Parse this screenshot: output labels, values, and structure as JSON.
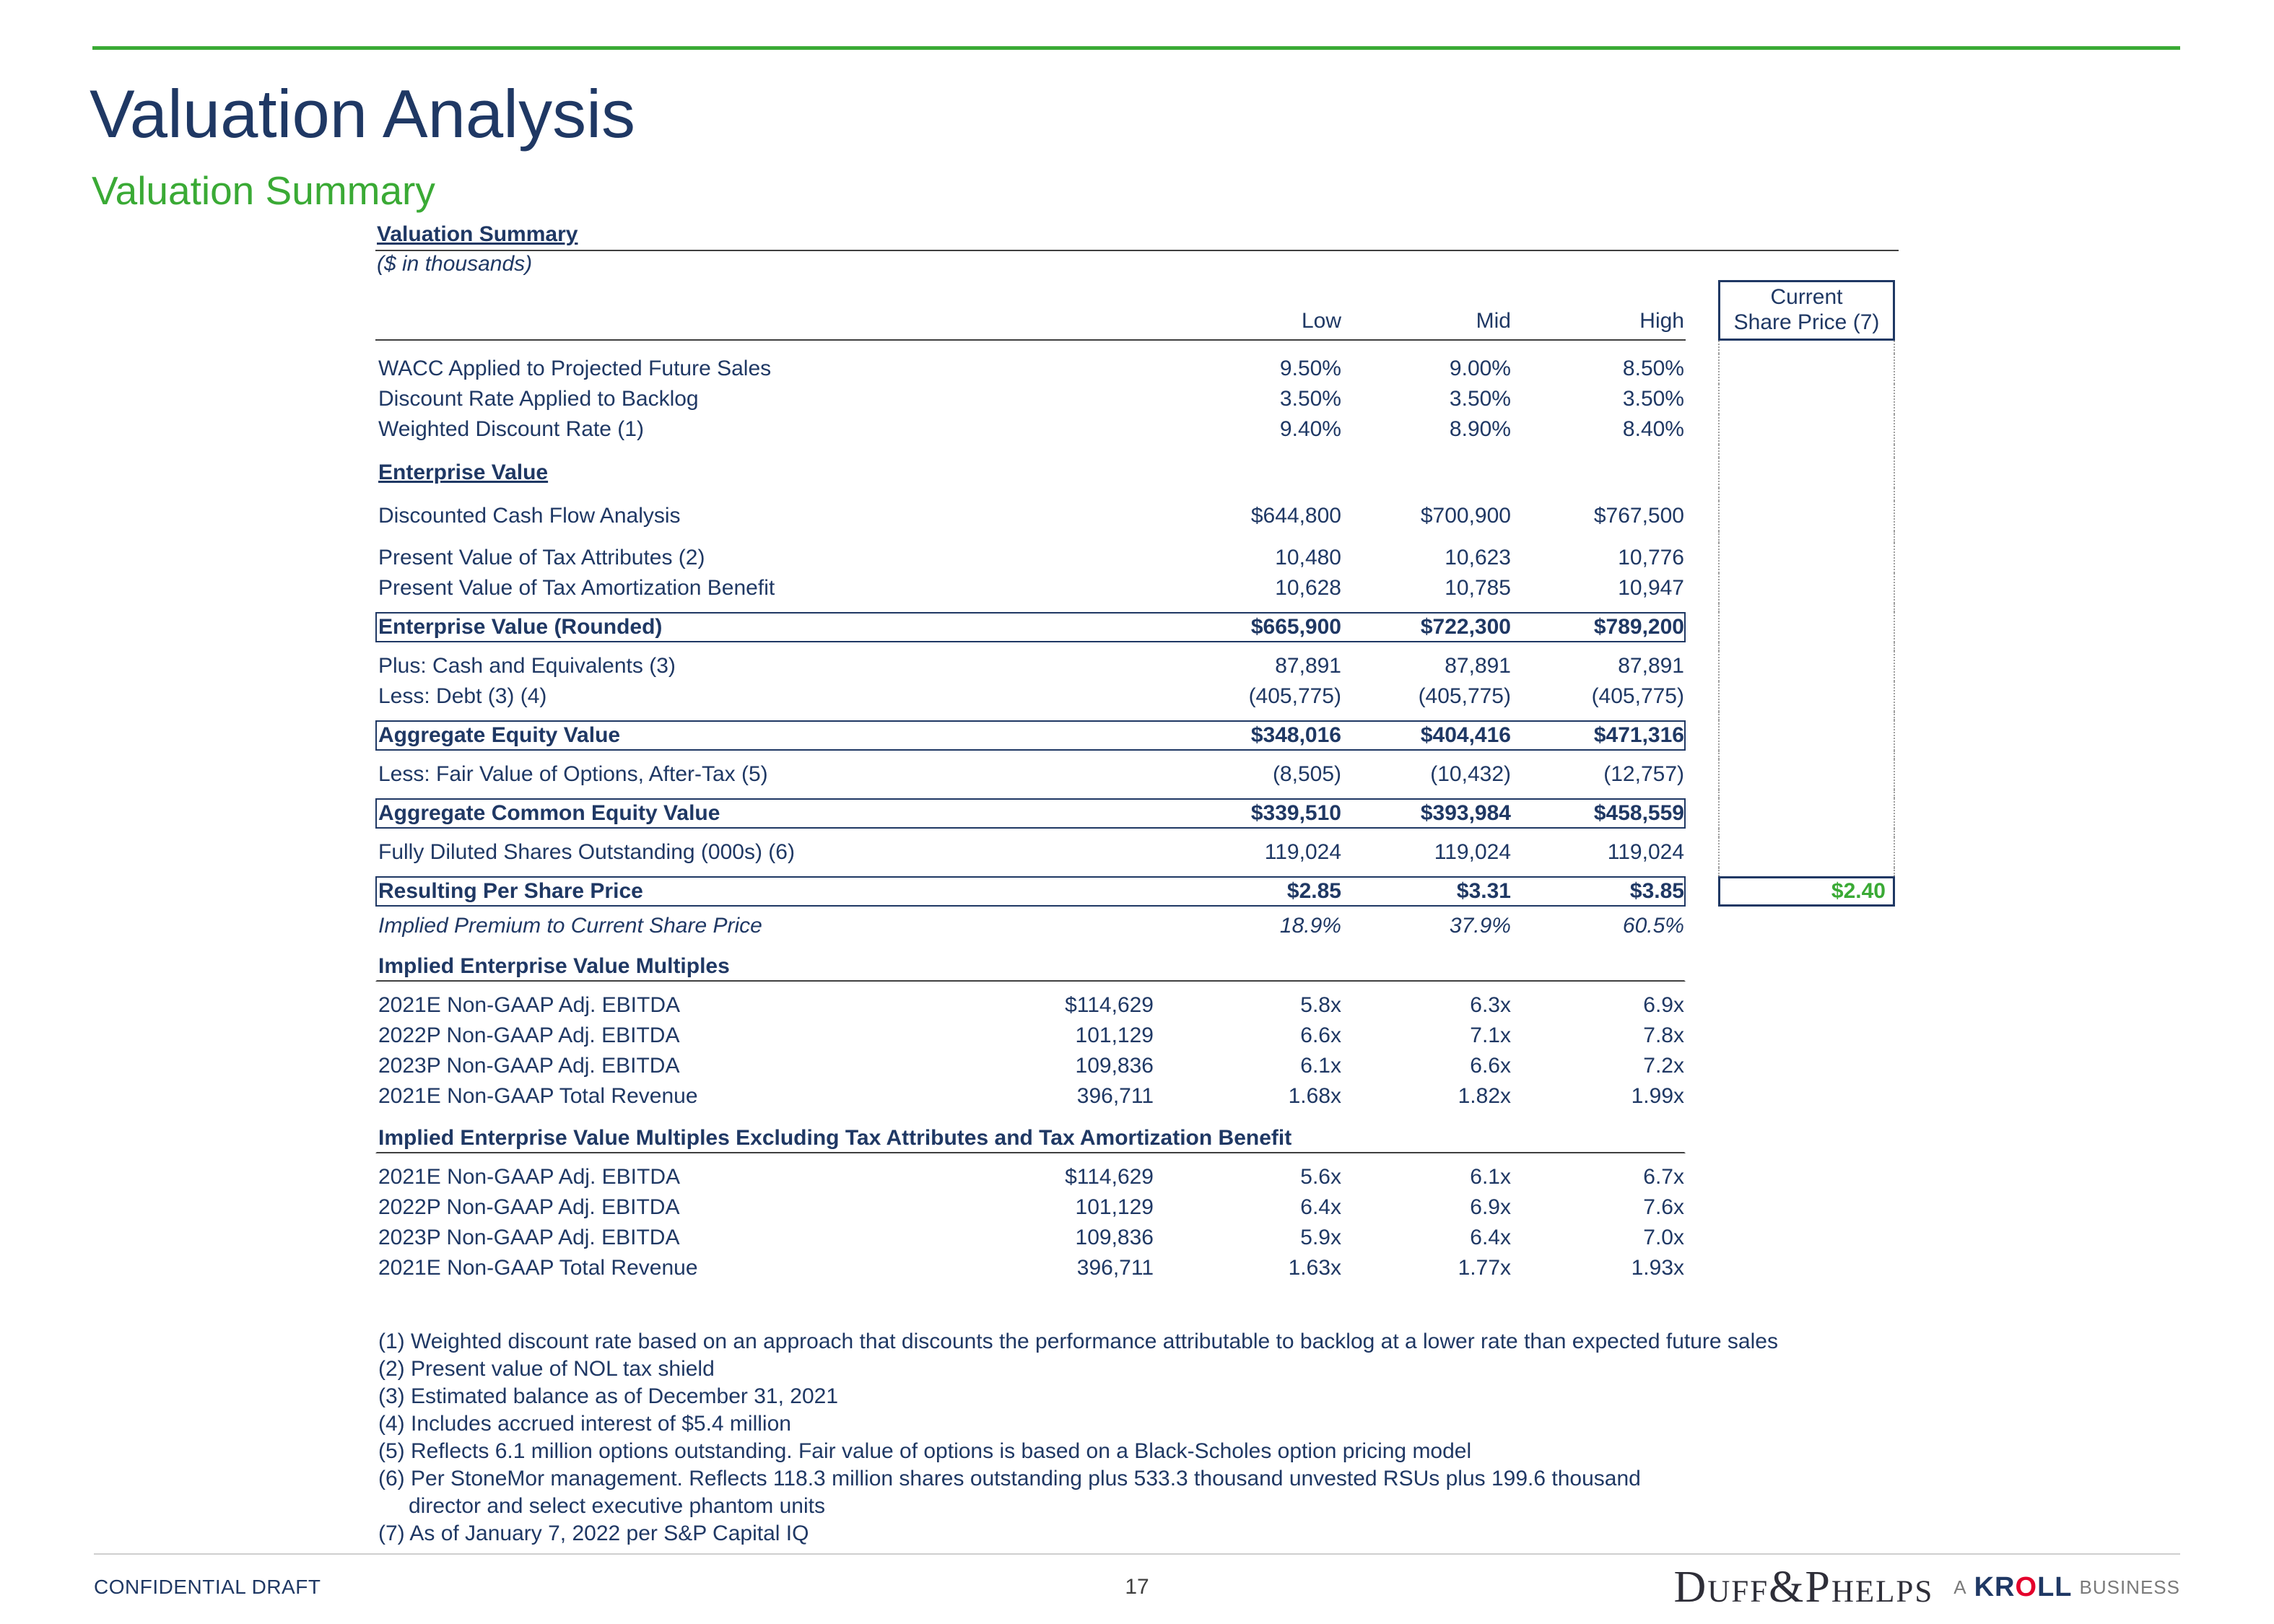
{
  "page": {
    "title": "Valuation Analysis",
    "subtitle": "Valuation Summary"
  },
  "accent_colors": {
    "green": "#3AAA35",
    "navy": "#1F3864",
    "kroll_red": "#E4002B"
  },
  "table": {
    "title": "Valuation Summary",
    "units": "($ in thousands)",
    "headers": {
      "low": "Low",
      "mid": "Mid",
      "high": "High",
      "current_line1": "Current",
      "current_line2": "Share Price (7)"
    },
    "rows": [
      {
        "t": "sp",
        "h": 18
      },
      {
        "t": "d",
        "l": "WACC Applied to Projected Future Sales",
        "lo": "9.50%",
        "m": "9.00%",
        "hi": "8.50%"
      },
      {
        "t": "d",
        "l": "Discount Rate Applied to Backlog",
        "lo": "3.50%",
        "m": "3.50%",
        "hi": "3.50%"
      },
      {
        "t": "d",
        "l": "Weighted Discount Rate (1)",
        "lo": "9.40%",
        "m": "8.90%",
        "hi": "8.40%"
      },
      {
        "t": "sp",
        "h": 18
      },
      {
        "t": "sec",
        "l": "Enterprise Value"
      },
      {
        "t": "sp",
        "h": 18
      },
      {
        "t": "d",
        "l": "Discounted Cash Flow Analysis",
        "lo": "$644,800",
        "m": "$700,900",
        "hi": "$767,500"
      },
      {
        "t": "sp",
        "h": 16
      },
      {
        "t": "d",
        "l": "Present Value of Tax Attributes (2)",
        "lo": "10,480",
        "m": "10,623",
        "hi": "10,776"
      },
      {
        "t": "d",
        "l": "Present Value of Tax Amortization Benefit",
        "lo": "10,628",
        "m": "10,785",
        "hi": "10,947"
      },
      {
        "t": "sp",
        "h": 12
      },
      {
        "t": "box",
        "l": "Enterprise Value (Rounded)",
        "lo": "$665,900",
        "m": "$722,300",
        "hi": "$789,200"
      },
      {
        "t": "sp",
        "h": 12
      },
      {
        "t": "d",
        "l": "Plus: Cash and Equivalents (3)",
        "lo": "87,891",
        "m": "87,891",
        "hi": "87,891"
      },
      {
        "t": "d",
        "l": "Less: Debt (3) (4)",
        "lo": "(405,775)",
        "m": "(405,775)",
        "hi": "(405,775)"
      },
      {
        "t": "sp",
        "h": 12
      },
      {
        "t": "box",
        "l": "Aggregate Equity Value",
        "lo": "$348,016",
        "m": "$404,416",
        "hi": "$471,316"
      },
      {
        "t": "sp",
        "h": 12
      },
      {
        "t": "d",
        "l": "Less: Fair Value of Options, After-Tax (5)",
        "lo": "(8,505)",
        "m": "(10,432)",
        "hi": "(12,757)"
      },
      {
        "t": "sp",
        "h": 12
      },
      {
        "t": "box",
        "l": "Aggregate Common Equity Value",
        "lo": "$339,510",
        "m": "$393,984",
        "hi": "$458,559"
      },
      {
        "t": "sp",
        "h": 12
      },
      {
        "t": "d",
        "l": "Fully Diluted Shares Outstanding (000s) (6)",
        "lo": "119,024",
        "m": "119,024",
        "hi": "119,024"
      },
      {
        "t": "sp",
        "h": 12
      },
      {
        "t": "ps",
        "l": "Resulting Per Share Price",
        "lo": "$2.85",
        "m": "$3.31",
        "hi": "$3.85",
        "cur": "$2.40"
      },
      {
        "t": "sp",
        "h": 6
      },
      {
        "t": "i",
        "l": "Implied Premium to Current Share Price",
        "lo": "18.9%",
        "m": "37.9%",
        "hi": "60.5%"
      },
      {
        "t": "sp",
        "h": 14
      },
      {
        "t": "sec",
        "l": "Implied Enterprise Value Multiples",
        "full": true
      },
      {
        "t": "sp",
        "h": 12
      },
      {
        "t": "d",
        "l": "2021E Non-GAAP Adj. EBITDA",
        "c1": "$114,629",
        "lo": "5.8x",
        "m": "6.3x",
        "hi": "6.9x"
      },
      {
        "t": "d",
        "l": "2022P Non-GAAP Adj. EBITDA",
        "c1": "101,129",
        "lo": "6.6x",
        "m": "7.1x",
        "hi": "7.8x"
      },
      {
        "t": "d",
        "l": "2023P Non-GAAP Adj. EBITDA",
        "c1": "109,836",
        "lo": "6.1x",
        "m": "6.6x",
        "hi": "7.2x"
      },
      {
        "t": "d",
        "l": "2021E Non-GAAP Total Revenue",
        "c1": "396,711",
        "lo": "1.68x",
        "m": "1.82x",
        "hi": "1.99x"
      },
      {
        "t": "sp",
        "h": 16
      },
      {
        "t": "sec",
        "l": "Implied Enterprise Value Multiples Excluding Tax Attributes and Tax Amortization Benefit",
        "full": true
      },
      {
        "t": "sp",
        "h": 12
      },
      {
        "t": "d",
        "l": "2021E Non-GAAP Adj. EBITDA",
        "c1": "$114,629",
        "lo": "5.6x",
        "m": "6.1x",
        "hi": "6.7x"
      },
      {
        "t": "d",
        "l": "2022P Non-GAAP Adj. EBITDA",
        "c1": "101,129",
        "lo": "6.4x",
        "m": "6.9x",
        "hi": "7.6x"
      },
      {
        "t": "d",
        "l": "2023P Non-GAAP Adj. EBITDA",
        "c1": "109,836",
        "lo": "5.9x",
        "m": "6.4x",
        "hi": "7.0x"
      },
      {
        "t": "d",
        "l": "2021E Non-GAAP Total Revenue",
        "c1": "396,711",
        "lo": "1.63x",
        "m": "1.77x",
        "hi": "1.93x"
      }
    ]
  },
  "footnotes": [
    {
      "text": "(1) Weighted discount rate based on an approach that discounts the performance attributable to backlog at a lower rate than expected future sales",
      "indent": false
    },
    {
      "text": "(2) Present value of NOL tax shield",
      "indent": false
    },
    {
      "text": "(3) Estimated balance as of December 31, 2021",
      "indent": false
    },
    {
      "text": "(4) Includes accrued interest of $5.4 million",
      "indent": false
    },
    {
      "text": "(5) Reflects 6.1 million options outstanding. Fair value of options is based on a Black-Scholes option pricing model",
      "indent": false
    },
    {
      "text": "(6) Per StoneMor management. Reflects 118.3 million shares outstanding plus 533.3 thousand unvested RSUs plus 199.6 thousand",
      "indent": false
    },
    {
      "text": "director and select executive phantom units",
      "indent": true
    },
    {
      "text": "(7) As of January 7, 2022 per S&P Capital IQ",
      "indent": false
    }
  ],
  "footer": {
    "left": "CONFIDENTIAL DRAFT",
    "page_number": "17",
    "brand": "Duff&Phelps",
    "kroll": {
      "a": "A",
      "k1": "KR",
      "o": "O",
      "k2": "LL",
      "business": "BUSINESS"
    }
  }
}
